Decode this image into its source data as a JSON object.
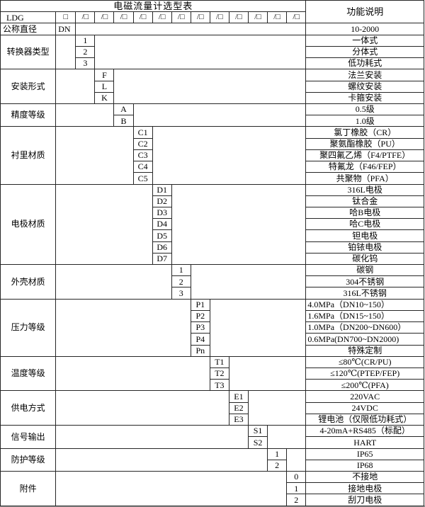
{
  "title": "电磁流量计选型表",
  "function_header": "功能说明",
  "model_row": {
    "prefix": "LDG",
    "box_glyph": "□",
    "slash_box_glyph": "/□",
    "slash_box_count": 12
  },
  "diameter_row": {
    "label": "公称直径",
    "code": "DN",
    "desc": "10-2000"
  },
  "sections": [
    {
      "label": "转换器类型",
      "options": [
        {
          "code": "1",
          "desc": "一体式"
        },
        {
          "code": "2",
          "desc": "分体式"
        },
        {
          "code": "3",
          "desc": "低功耗式"
        }
      ]
    },
    {
      "label": "安装形式",
      "options": [
        {
          "code": "F",
          "desc": "法兰安装"
        },
        {
          "code": "L",
          "desc": "螺纹安装"
        },
        {
          "code": "K",
          "desc": "卡箍安装"
        }
      ]
    },
    {
      "label": "精度等级",
      "options": [
        {
          "code": "A",
          "desc": "0.5级"
        },
        {
          "code": "B",
          "desc": "1.0级"
        }
      ]
    },
    {
      "label": "衬里材质",
      "options": [
        {
          "code": "C1",
          "desc": "氯丁橡胶（CR）"
        },
        {
          "code": "C2",
          "desc": "聚氨酯橡胶（PU）"
        },
        {
          "code": "C3",
          "desc": "聚四氟乙烯（F4/PTFE）"
        },
        {
          "code": "C4",
          "desc": "特氟龙（F46/FEP）"
        },
        {
          "code": "C5",
          "desc": "共聚物（PFA）"
        }
      ]
    },
    {
      "label": "电极材质",
      "options": [
        {
          "code": "D1",
          "desc": "316L电极"
        },
        {
          "code": "D2",
          "desc": "钛合金"
        },
        {
          "code": "D3",
          "desc": "哈B电极"
        },
        {
          "code": "D4",
          "desc": "哈C电极"
        },
        {
          "code": "D5",
          "desc": "钽电极"
        },
        {
          "code": "D6",
          "desc": "铂铱电极"
        },
        {
          "code": "D7",
          "desc": "碳化钨"
        }
      ]
    },
    {
      "label": "外壳材质",
      "options": [
        {
          "code": "1",
          "desc": "碳钢"
        },
        {
          "code": "2",
          "desc": "304不锈钢"
        },
        {
          "code": "3",
          "desc": "316L不锈钢"
        }
      ]
    },
    {
      "label": "压力等级",
      "options": [
        {
          "code": "P1",
          "desc": "4.0MPa（DN10~150）",
          "align": "left"
        },
        {
          "code": "P2",
          "desc": "1.6MPa（DN15~150）",
          "align": "left"
        },
        {
          "code": "P3",
          "desc": "1.0MPa（DN200~DN600）",
          "align": "left"
        },
        {
          "code": "P4",
          "desc": "0.6MPa(DN700~DN2000)",
          "align": "left"
        },
        {
          "code": "Pn",
          "desc": "特殊定制"
        }
      ]
    },
    {
      "label": "温度等级",
      "options": [
        {
          "code": "T1",
          "desc": "≤80℃(CR/PU)"
        },
        {
          "code": "T2",
          "desc": "≤120℃(PTEP/FEP)"
        },
        {
          "code": "T3",
          "desc": "≤200℃(PFA)"
        }
      ]
    },
    {
      "label": "供电方式",
      "options": [
        {
          "code": "E1",
          "desc": "220VAC"
        },
        {
          "code": "E2",
          "desc": "24VDC"
        },
        {
          "code": "E3",
          "desc": "锂电池（仅限低功耗式）"
        }
      ]
    },
    {
      "label": "信号输出",
      "options": [
        {
          "code": "S1",
          "desc": "4-20mA+RS485（标配）"
        },
        {
          "code": "S2",
          "desc": "HART"
        }
      ]
    },
    {
      "label": "防护等级",
      "options": [
        {
          "code": "1",
          "desc": "IP65"
        },
        {
          "code": "2",
          "desc": "IP68"
        }
      ]
    },
    {
      "label": "附件",
      "options": [
        {
          "code": "0",
          "desc": "不接地"
        },
        {
          "code": "1",
          "desc": "接地电极"
        },
        {
          "code": "2",
          "desc": "刮刀电极"
        }
      ]
    }
  ]
}
